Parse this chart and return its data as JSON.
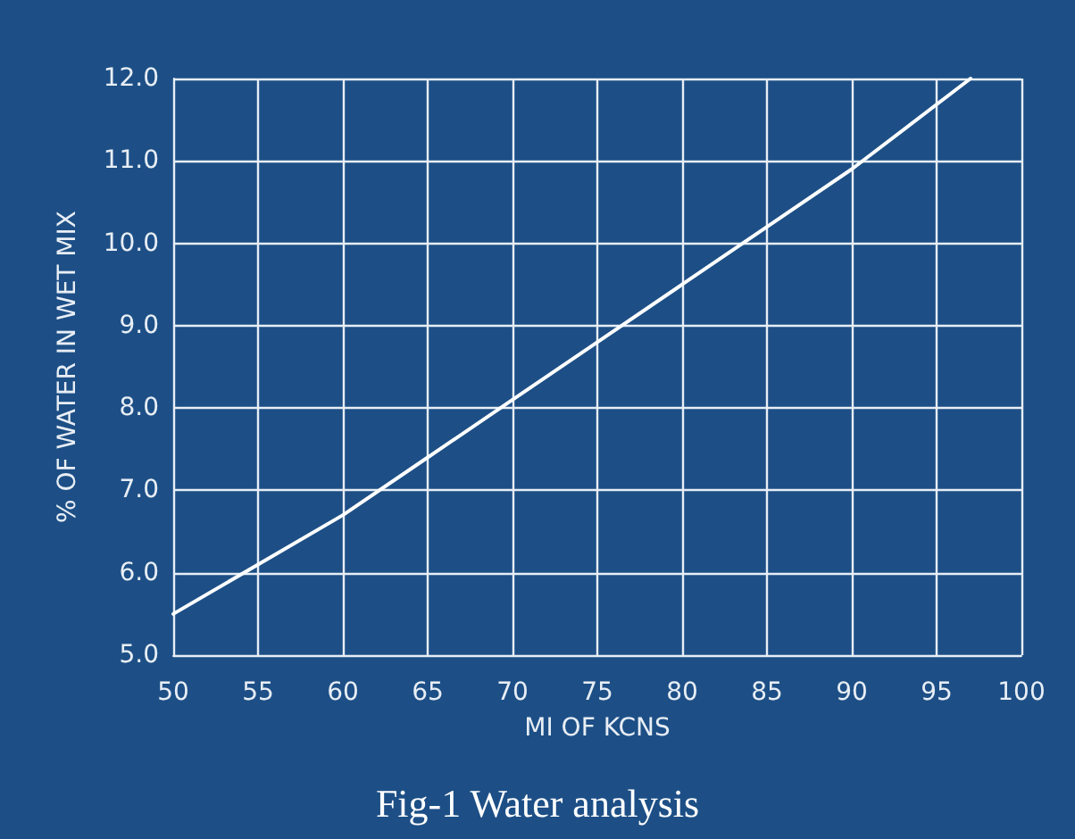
{
  "chart_data": {
    "type": "line",
    "xlabel": "MI OF KCNS",
    "ylabel": "% OF WATER IN WET MIX",
    "annotations": [
      "Fig-1 Water analysis"
    ],
    "x": [
      50,
      55,
      60,
      65,
      70,
      75,
      80,
      85,
      90,
      97
    ],
    "series": [
      {
        "color": "#ffffff",
        "values": [
          5.5,
          6.1,
          6.7,
          7.4,
          8.1,
          8.8,
          9.5,
          10.2,
          10.9,
          12.0
        ]
      }
    ],
    "xlim": [
      50,
      100
    ],
    "xticks": [
      50,
      55,
      60,
      65,
      70,
      75,
      80,
      85,
      90,
      95,
      100
    ],
    "ylim": [
      5,
      12
    ],
    "yticks": [
      {
        "value": 5,
        "label": "5.0"
      },
      {
        "value": 6,
        "label": "6.0"
      },
      {
        "value": 7,
        "label": "7.0"
      },
      {
        "value": 8,
        "label": "8.0"
      },
      {
        "value": 9,
        "label": "9.0"
      },
      {
        "value": 10,
        "label": "10.0"
      },
      {
        "value": 11,
        "label": "11.0"
      },
      {
        "value": 12,
        "label": "12.0"
      }
    ],
    "grid": true,
    "marker": "none",
    "line_style": "solid"
  }
}
